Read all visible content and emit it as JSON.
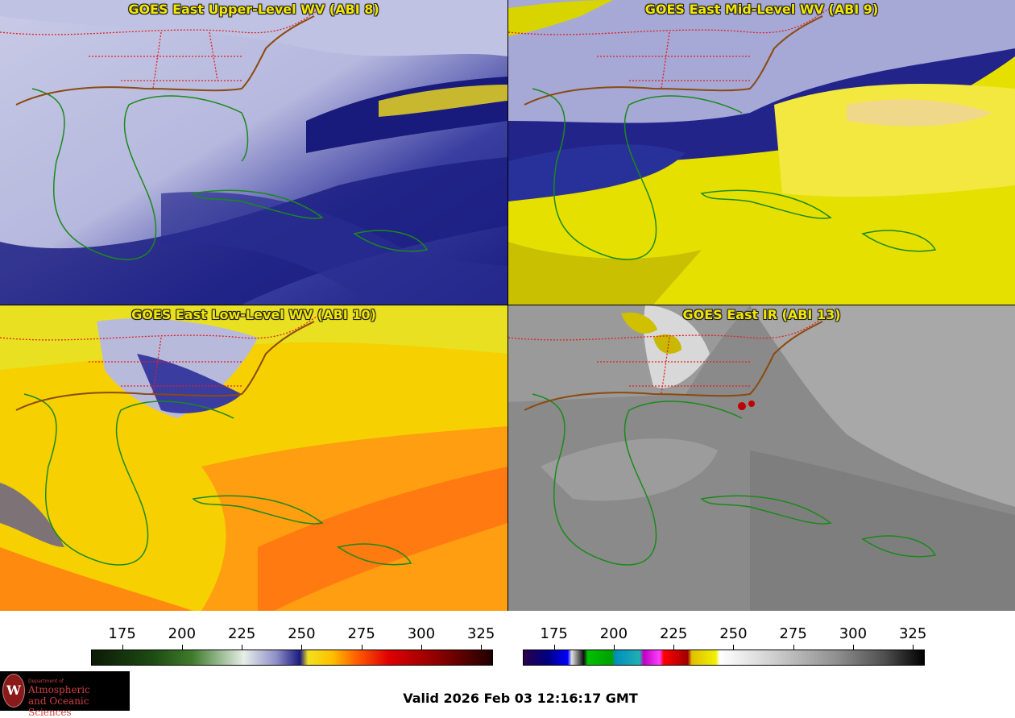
{
  "panels": [
    {
      "title": "GOES East Upper-Level WV (ABI 8)"
    },
    {
      "title": "GOES East Mid-Level WV (ABI 9)"
    },
    {
      "title": "GOES East Low-Level WV (ABI 10)"
    },
    {
      "title": "GOES East IR (ABI 13)"
    }
  ],
  "colorbars": [
    {
      "ticks": [
        "175",
        "200",
        "225",
        "250",
        "275",
        "300",
        "325"
      ],
      "range": [
        162,
        330
      ]
    },
    {
      "ticks": [
        "175",
        "200",
        "225",
        "250",
        "275",
        "300",
        "325"
      ],
      "range": [
        162,
        330
      ]
    }
  ],
  "colors": {
    "title_text": "#f2e600",
    "state_borders": "#e02020",
    "coastlines": "#1a8a1a"
  },
  "logo": {
    "dept": "Department of",
    "line1": "Atmospheric",
    "line2": "and Oceanic Sciences",
    "seal": "W"
  },
  "valid_time": "Valid 2026 Feb 03 12:16:17 GMT"
}
